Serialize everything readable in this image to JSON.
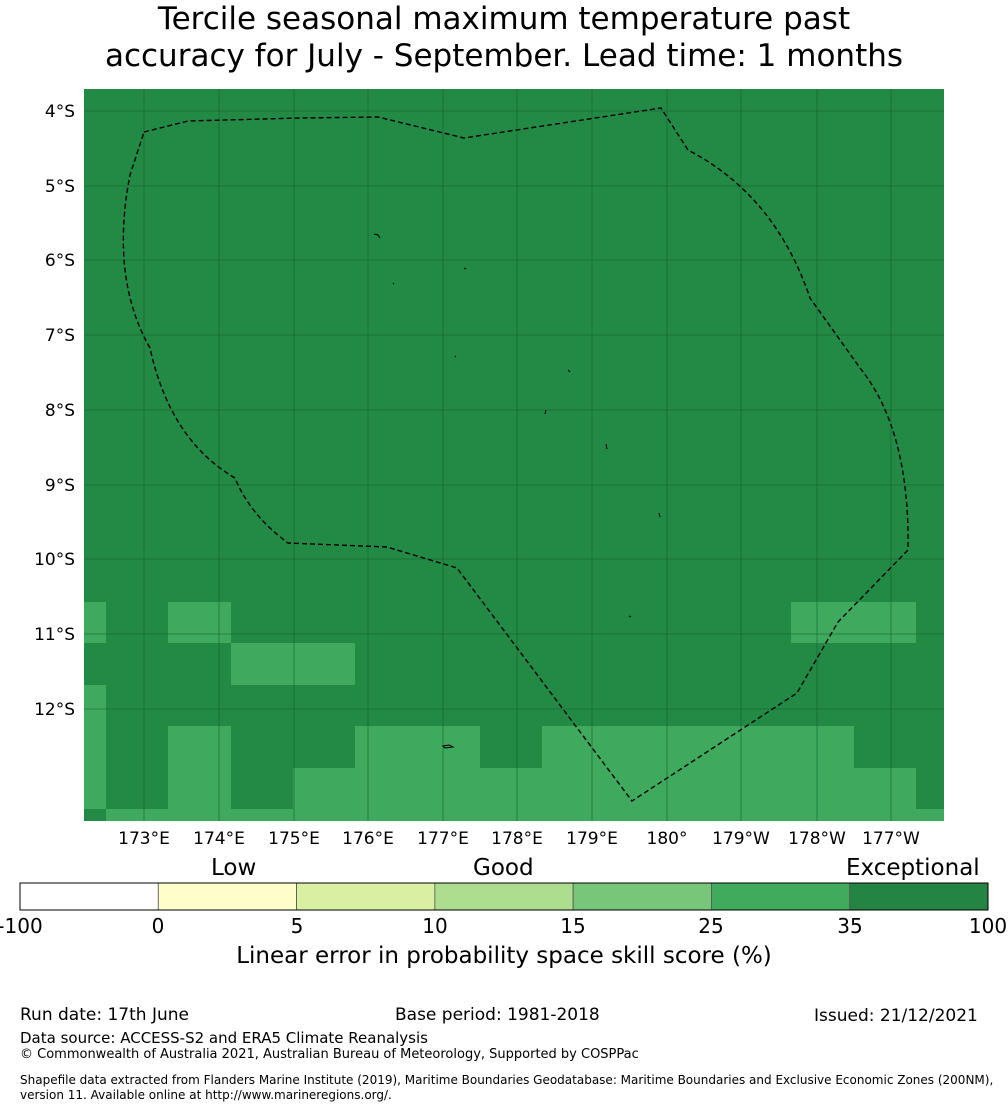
{
  "title": {
    "line1": "Tercile seasonal maximum temperature past",
    "line2": "accuracy for July - September. Lead time: 1 months"
  },
  "map": {
    "lat_labels": [
      "4°S",
      "5°S",
      "6°S",
      "7°S",
      "8°S",
      "9°S",
      "10°S",
      "11°S",
      "12°S"
    ],
    "lon_labels": [
      "173°E",
      "174°E",
      "175°E",
      "176°E",
      "177°E",
      "178°E",
      "179°E",
      "180°",
      "179°W",
      "178°W",
      "177°W"
    ],
    "colors": {
      "exceptional": "#238a45",
      "band_25_35": "#3fa95d",
      "eez_line": "#000000"
    }
  },
  "colorbar": {
    "headers": {
      "low": "Low",
      "good": "Good",
      "exceptional": "Exceptional"
    },
    "ticks": [
      "-100",
      "0",
      "5",
      "10",
      "15",
      "25",
      "35",
      "100"
    ],
    "colors": [
      "#ffffff",
      "#ffffcc",
      "#d9f0a3",
      "#addd8e",
      "#78c679",
      "#41ab5d",
      "#238443"
    ],
    "label": "Linear error in probability space skill score (%)"
  },
  "footer": {
    "run_date": "Run date: 17th June",
    "base_period": "Base period: 1981-2018",
    "issued": "Issued: 21/12/2021",
    "data_source": "Data source: ACCESS-S2 and ERA5 Climate Reanalysis",
    "copyright": "© Commonwealth of Australia 2021, Australian Bureau of Meteorology, Supported by COSPPac",
    "shapefile1": "Shapefile data extracted from Flanders Marine Institute (2019), Maritime Boundaries Geodatabase: Maritime Boundaries and Exclusive Economic Zones (200NM),",
    "shapefile2": "version 11. Available online at http://www.marineregions.org/."
  }
}
